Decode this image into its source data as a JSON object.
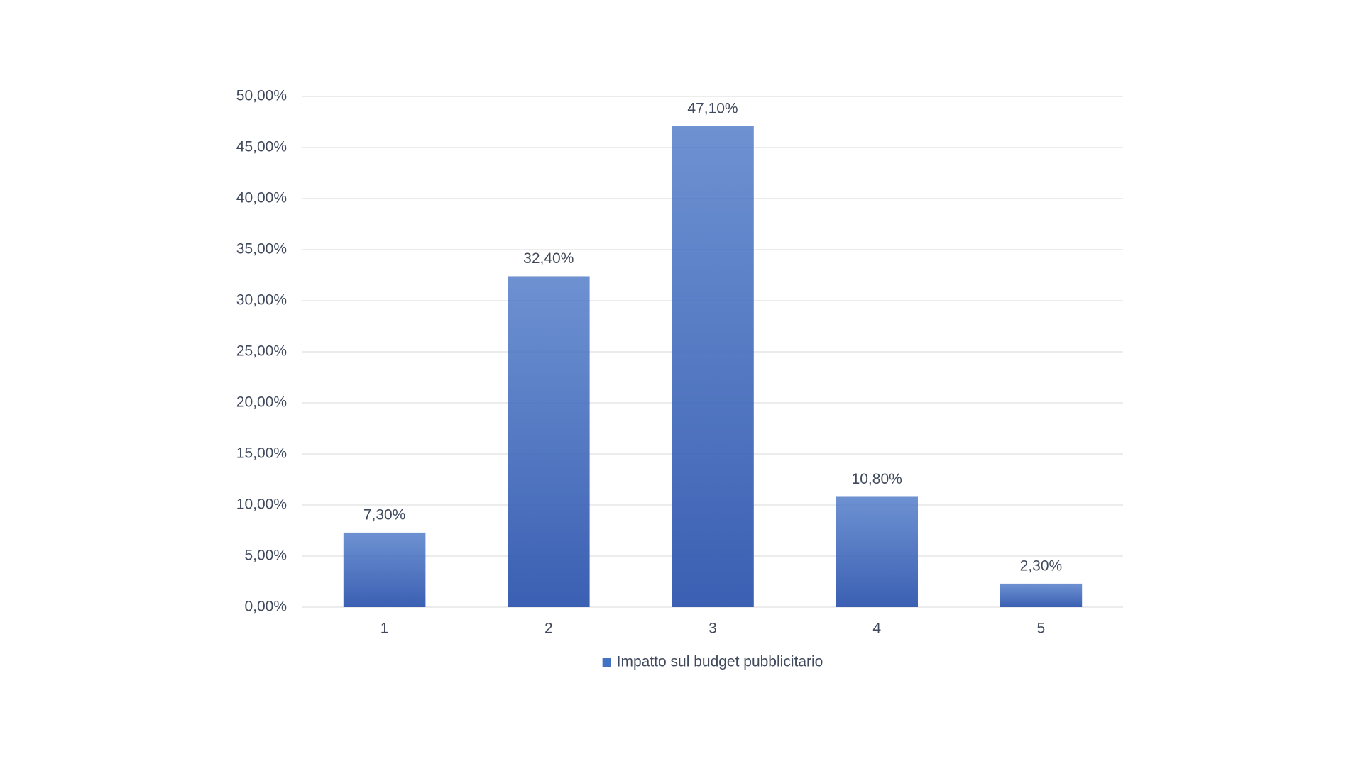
{
  "chart_data": {
    "type": "bar",
    "categories": [
      "1",
      "2",
      "3",
      "4",
      "5"
    ],
    "series": [
      {
        "name": "Impatto sul budget pubblicitario",
        "color": "#4472c4",
        "values": [
          7.3,
          32.4,
          47.1,
          10.8,
          2.3
        ],
        "value_labels": [
          "7,30%",
          "32,40%",
          "47,10%",
          "10,80%",
          "2,30%"
        ]
      }
    ],
    "ylim": [
      0,
      50
    ],
    "yticks": [
      {
        "value": 0,
        "label": "0,00%"
      },
      {
        "value": 5,
        "label": "5,00%"
      },
      {
        "value": 10,
        "label": "10,00%"
      },
      {
        "value": 15,
        "label": "15,00%"
      },
      {
        "value": 20,
        "label": "20,00%"
      },
      {
        "value": 25,
        "label": "25,00%"
      },
      {
        "value": 30,
        "label": "30,00%"
      },
      {
        "value": 35,
        "label": "35,00%"
      },
      {
        "value": 40,
        "label": "40,00%"
      },
      {
        "value": 45,
        "label": "45,00%"
      },
      {
        "value": 50,
        "label": "50,00%"
      }
    ],
    "grid": true,
    "legend": "bottom"
  }
}
